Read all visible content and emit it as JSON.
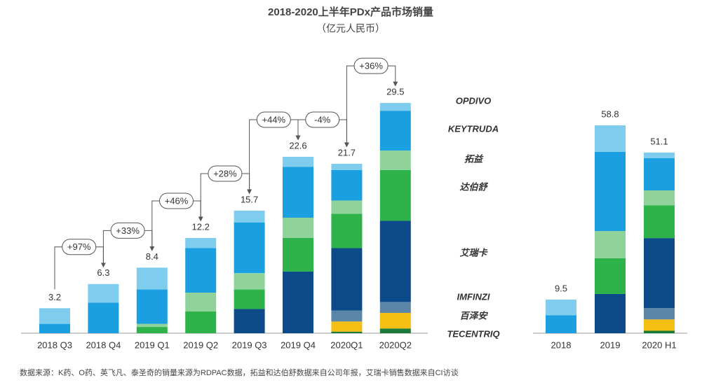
{
  "title": "2018-2020上半年PDx产品市场销量",
  "subtitle": "（亿元人民币）",
  "source": "数据来源：K药、O药、英飞凡、泰圣奇的销量来源为RDPAC数据，拓益和达伯舒数据来自公司年报，艾瑞卡销售数据来自CI访谈",
  "chart_data": [
    {
      "type": "stacked_bar",
      "categories": [
        "2018 Q3",
        "2018 Q4",
        "2019 Q1",
        "2019 Q2",
        "2019 Q3",
        "2019 Q4",
        "2020Q1",
        "2020Q2"
      ],
      "totals": [
        3.2,
        6.3,
        8.4,
        12.2,
        15.7,
        22.6,
        21.7,
        29.5
      ],
      "annotations": [
        "+97%",
        "+33%",
        "+46%",
        "+28%",
        "+44%",
        "-4%",
        "+36%"
      ],
      "ylim": [
        0,
        30
      ],
      "series": [
        {
          "name": "OPDIVO",
          "color": "#7fcdee",
          "values": [
            2.0,
            2.4,
            2.8,
            1.3,
            1.5,
            1.3,
            0.8,
            1.0
          ]
        },
        {
          "name": "KEYTRUDA",
          "color": "#1a9fe0",
          "values": [
            1.2,
            3.9,
            4.4,
            5.7,
            6.5,
            6.5,
            3.9,
            5.1
          ]
        },
        {
          "name": "拓益",
          "color": "#8fd39b",
          "values": [
            0,
            0,
            0.4,
            2.4,
            2.1,
            2.6,
            1.7,
            2.5
          ]
        },
        {
          "name": "达伯舒",
          "color": "#2db34a",
          "values": [
            0,
            0,
            0.8,
            2.8,
            2.5,
            4.3,
            4.4,
            6.5
          ]
        },
        {
          "name": "艾瑞卡",
          "color": "#0d4a8a",
          "values": [
            0,
            0,
            0,
            0,
            3.1,
            7.9,
            8.0,
            10.4
          ]
        },
        {
          "name": "IMFINZI",
          "color": "#5b86a8",
          "values": [
            0,
            0,
            0,
            0,
            0,
            0,
            1.4,
            1.4
          ]
        },
        {
          "name": "百泽安",
          "color": "#f5be13",
          "values": [
            0,
            0,
            0,
            0,
            0,
            0,
            1.3,
            2.0
          ]
        },
        {
          "name": "TECENTRIQ",
          "color": "#1a7a3a",
          "values": [
            0,
            0,
            0,
            0,
            0,
            0,
            0.2,
            0.6
          ]
        }
      ]
    },
    {
      "type": "stacked_bar",
      "categories": [
        "2018",
        "2019",
        "2020 H1"
      ],
      "totals": [
        9.5,
        58.8,
        51.1
      ],
      "ylim": [
        0,
        60
      ],
      "series": [
        {
          "color": "#7fcdee",
          "values": [
            4.4,
            7.5,
            1.6
          ]
        },
        {
          "color": "#1a9fe0",
          "values": [
            5.1,
            22.4,
            9.1
          ]
        },
        {
          "color": "#8fd39b",
          "values": [
            0,
            7.7,
            4.2
          ]
        },
        {
          "color": "#2db34a",
          "values": [
            0,
            10.1,
            9.3
          ]
        },
        {
          "color": "#0d4a8a",
          "values": [
            0,
            11.1,
            19.8
          ]
        },
        {
          "color": "#5b86a8",
          "values": [
            0,
            0,
            3.2
          ]
        },
        {
          "color": "#f5be13",
          "values": [
            0,
            0,
            3.2
          ]
        },
        {
          "color": "#1a7a3a",
          "values": [
            0,
            0,
            0.7
          ]
        }
      ]
    }
  ]
}
